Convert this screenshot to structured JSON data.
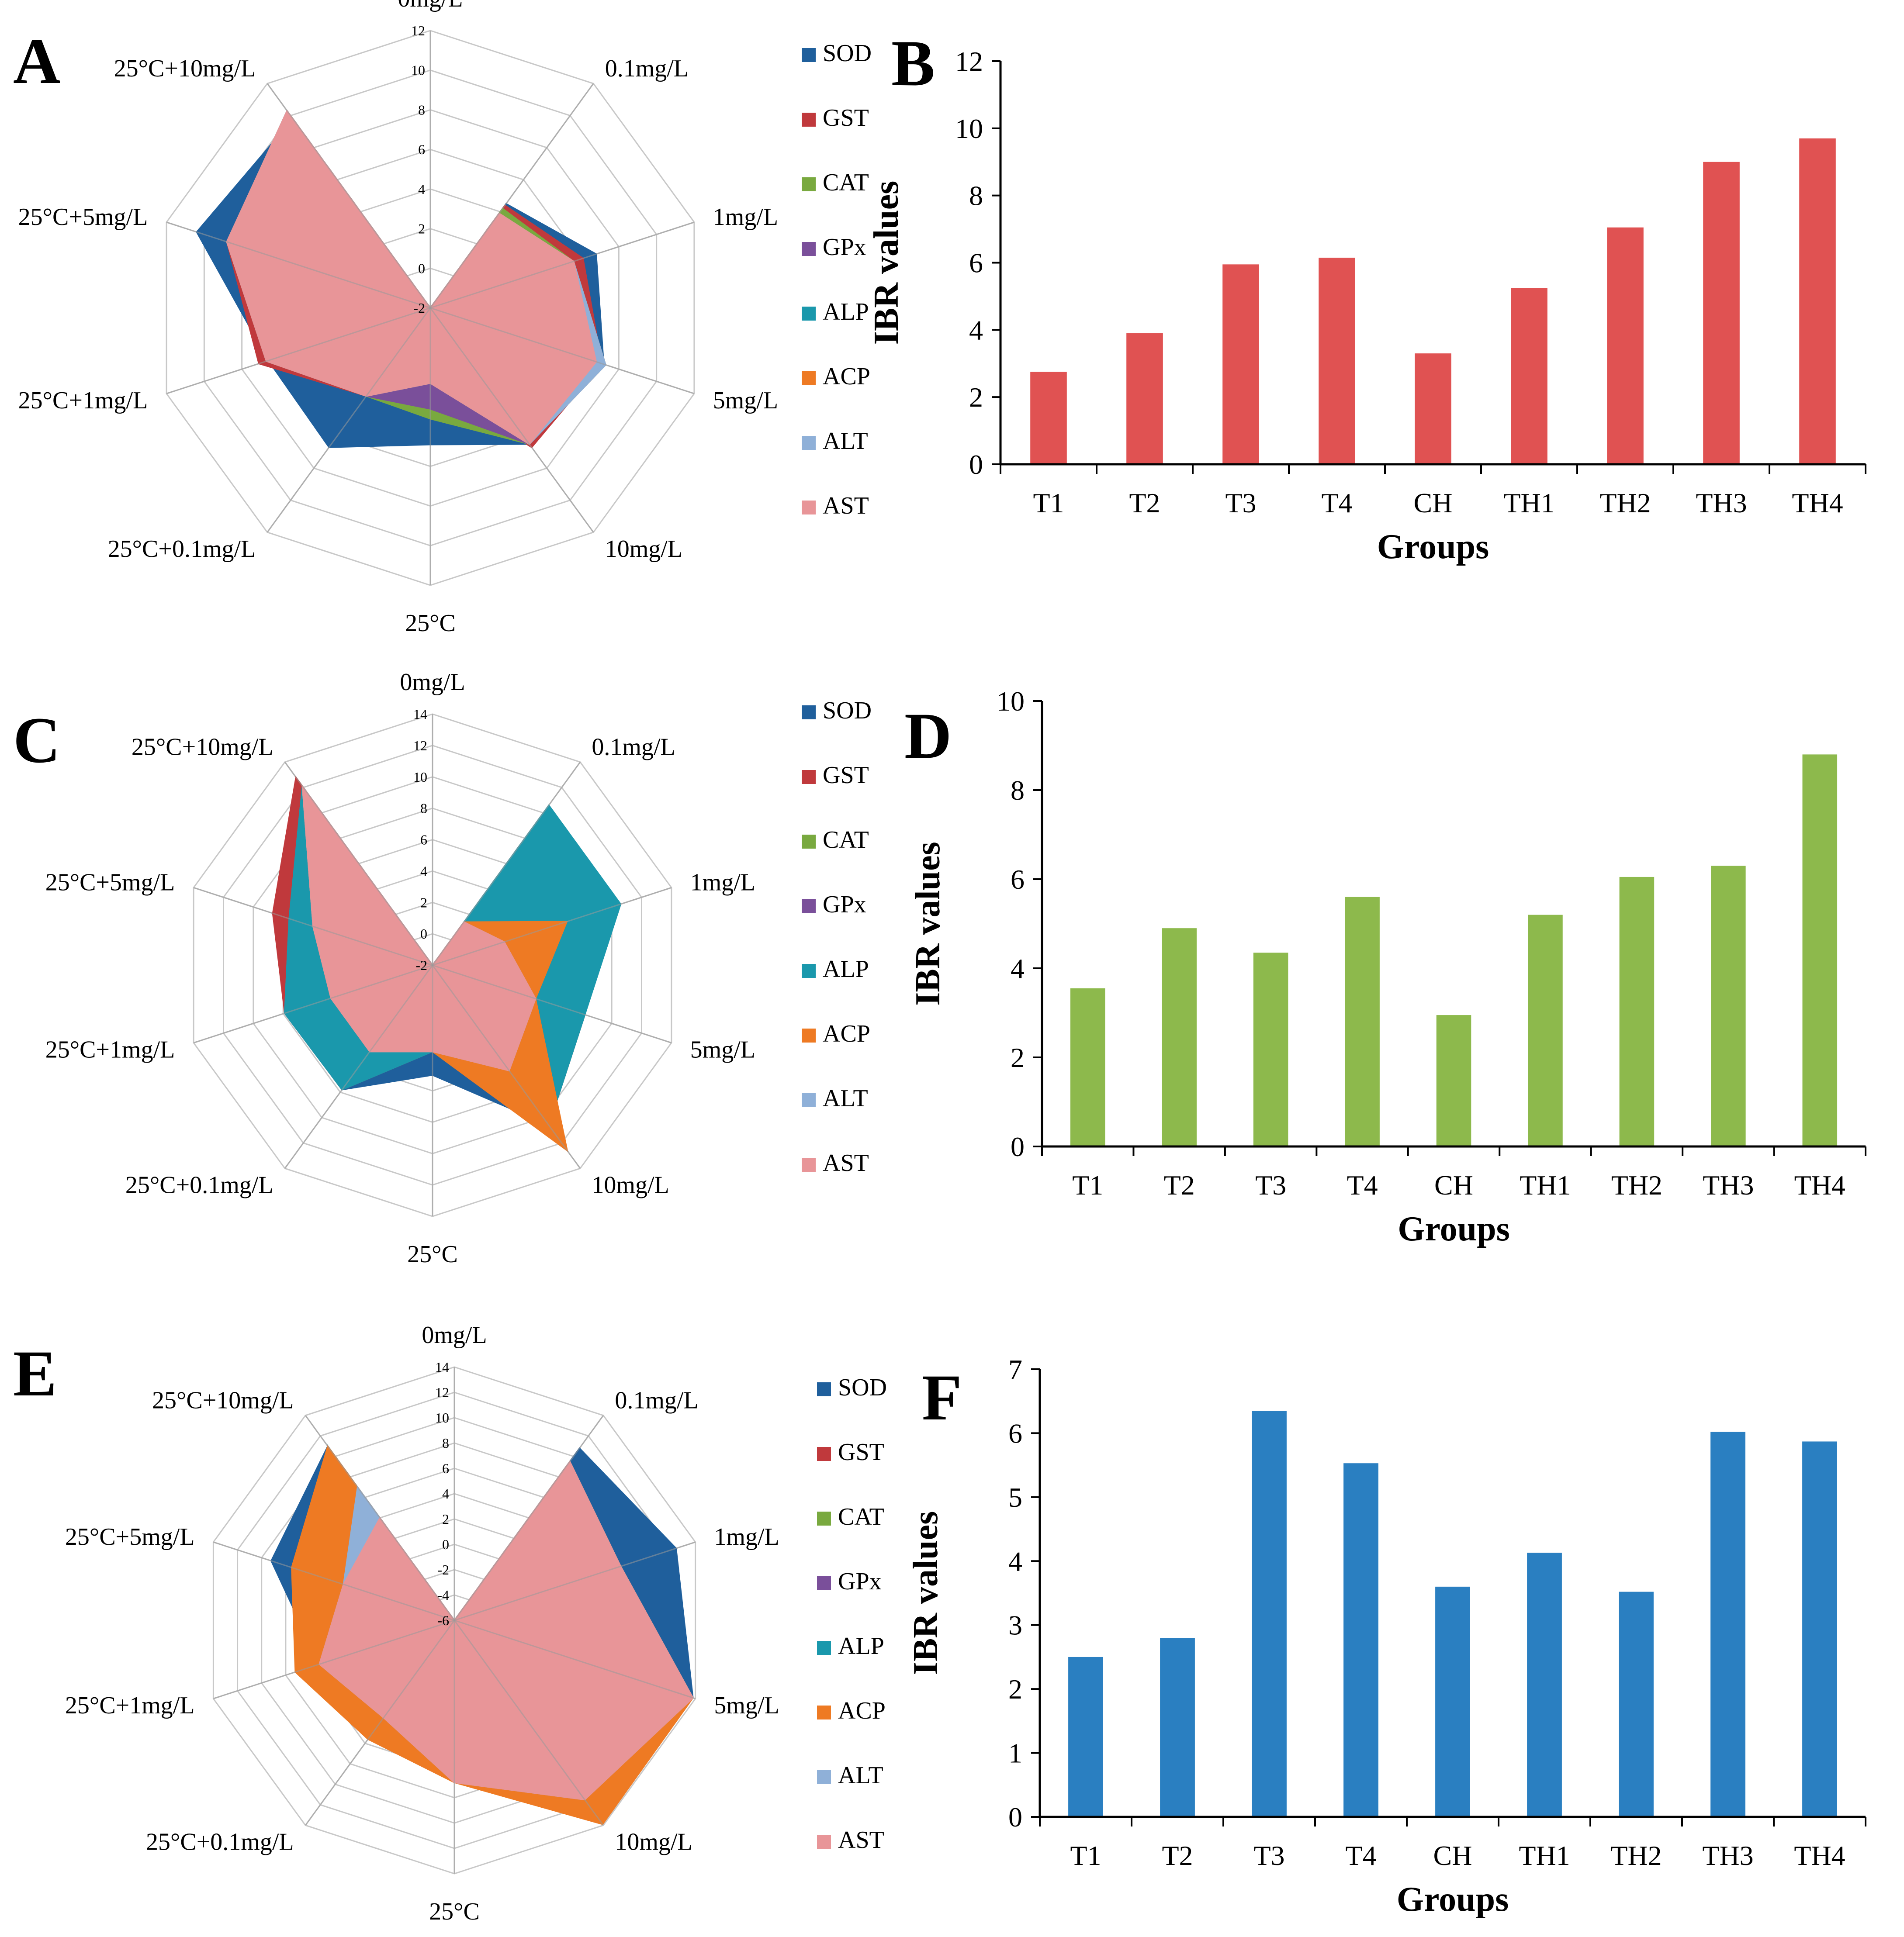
{
  "panels": {
    "A": "A",
    "B": "B",
    "C": "C",
    "D": "D",
    "E": "E",
    "F": "F"
  },
  "legend": {
    "items": [
      {
        "label": "SOD",
        "color": "#1f5f9c"
      },
      {
        "label": "GST",
        "color": "#c0393c"
      },
      {
        "label": "CAT",
        "color": "#79a93f"
      },
      {
        "label": "GPx",
        "color": "#7a4f9a"
      },
      {
        "label": "ALP",
        "color": "#1a98ac"
      },
      {
        "label": "ACP",
        "color": "#ee7a23"
      },
      {
        "label": "ALT",
        "color": "#8fb0d8"
      },
      {
        "label": "AST",
        "color": "#e89598"
      }
    ]
  },
  "chart_data": [
    {
      "type": "radar",
      "panel": "A",
      "categories": [
        "0mg/L",
        "0.1mg/L",
        "1mg/L",
        "5mg/L",
        "10mg/L",
        "25°C",
        "25°C+0.1mg/L",
        "25°C+1mg/L",
        "25°C+5mg/L",
        "25°C+10mg/L"
      ],
      "rlim": [
        -2,
        12
      ],
      "ticks": [
        -2,
        0,
        2,
        4,
        6,
        8,
        10,
        12
      ],
      "series": [
        {
          "name": "SOD",
          "values": [
            -2,
            4.5,
            6.8,
            7.2,
            6.5,
            4.9,
            6.7,
            6.6,
            10.4,
            9.8
          ]
        },
        {
          "name": "GST",
          "values": [
            -2,
            4.4,
            6.1,
            7.1,
            6.7,
            1.8,
            3.5,
            7.1,
            8.8,
            10.1
          ]
        },
        {
          "name": "CAT",
          "values": [
            -2,
            4.2,
            5.6,
            7.1,
            6.5,
            3.6,
            3.5,
            6.7,
            8.8,
            10.3
          ]
        },
        {
          "name": "GPx",
          "values": [
            -2,
            3.9,
            5.6,
            7.3,
            6.5,
            3.1,
            3.5,
            6.7,
            8.8,
            10.3
          ]
        },
        {
          "name": "ALP",
          "values": [
            -2,
            3.9,
            5.6,
            7.3,
            6.5,
            1.8,
            3.5,
            6.7,
            8.8,
            10.3
          ]
        },
        {
          "name": "ACP",
          "values": [
            -2,
            3.9,
            5.6,
            7.3,
            6.5,
            1.8,
            3.5,
            6.7,
            8.8,
            10.3
          ]
        },
        {
          "name": "ALT",
          "values": [
            -2,
            3.9,
            5.6,
            7.3,
            6.5,
            1.8,
            3.5,
            6.7,
            8.8,
            10.3
          ]
        },
        {
          "name": "AST",
          "values": [
            -2,
            3.9,
            5.6,
            6.8,
            6.5,
            1.8,
            3.5,
            6.7,
            8.8,
            10.3
          ]
        }
      ]
    },
    {
      "type": "bar",
      "panel": "B",
      "categories": [
        "T1",
        "T2",
        "T3",
        "T4",
        "CH",
        "TH1",
        "TH2",
        "TH3",
        "TH4"
      ],
      "values": [
        2.75,
        3.9,
        5.95,
        6.15,
        3.3,
        5.25,
        7.05,
        9.0,
        9.7
      ],
      "ylim": [
        0,
        12
      ],
      "yticks": [
        0,
        2,
        4,
        6,
        8,
        10,
        12
      ],
      "color": "#e05252",
      "xlabel": "Groups",
      "ylabel": "IBR values"
    },
    {
      "type": "radar",
      "panel": "C",
      "categories": [
        "0mg/L",
        "0.1mg/L",
        "1mg/L",
        "5mg/L",
        "10mg/L",
        "25°C",
        "25°C+0.1mg/L",
        "25°C+1mg/L",
        "25°C+5mg/L",
        "25°C+10mg/L"
      ],
      "rlim": [
        -2,
        14
      ],
      "ticks": [
        -2,
        0,
        2,
        4,
        6,
        8,
        10,
        12,
        14
      ],
      "series": [
        {
          "name": "SOD",
          "values": [
            -2,
            1.4,
            6.5,
            8.2,
            10.6,
            5.0,
            7.8,
            7.9,
            7.6,
            12.1
          ]
        },
        {
          "name": "GST",
          "values": [
            -2,
            1.4,
            6.5,
            8.2,
            10.6,
            3.5,
            7.8,
            7.9,
            8.7,
            12.8
          ]
        },
        {
          "name": "CAT",
          "values": [
            -2,
            1.4,
            6.5,
            8.2,
            10.6,
            3.5,
            7.8,
            7.9,
            7.6,
            12.1
          ]
        },
        {
          "name": "GPx",
          "values": [
            -2,
            1.4,
            6.5,
            8.2,
            10.6,
            3.5,
            7.8,
            7.9,
            7.6,
            12.1
          ]
        },
        {
          "name": "ALP",
          "values": [
            -2,
            10.6,
            10.6,
            8.2,
            10.6,
            3.5,
            7.8,
            7.9,
            7.6,
            12.1
          ]
        },
        {
          "name": "ACP",
          "values": [
            -2,
            1.4,
            7.0,
            4.9,
            12.6,
            3.5,
            4.8,
            4.8,
            6.0,
            12.1
          ]
        },
        {
          "name": "ALT",
          "values": [
            -2,
            1.4,
            2.8,
            4.9,
            6.3,
            3.5,
            4.8,
            4.8,
            6.0,
            12.1
          ]
        },
        {
          "name": "AST",
          "values": [
            -2,
            1.4,
            2.8,
            4.9,
            6.3,
            3.5,
            4.8,
            4.8,
            6.0,
            12.1
          ]
        }
      ]
    },
    {
      "type": "bar",
      "panel": "D",
      "categories": [
        "T1",
        "T2",
        "T3",
        "T4",
        "CH",
        "TH1",
        "TH2",
        "TH3",
        "TH4"
      ],
      "values": [
        3.55,
        4.9,
        4.35,
        5.6,
        2.95,
        5.2,
        6.05,
        6.3,
        8.8
      ],
      "ylim": [
        0,
        10
      ],
      "yticks": [
        0,
        2,
        4,
        6,
        8,
        10
      ],
      "color": "#8db94c",
      "xlabel": "Groups",
      "ylabel": "IBR values"
    },
    {
      "type": "radar",
      "panel": "E",
      "categories": [
        "0mg/L",
        "0.1mg/L",
        "1mg/L",
        "5mg/L",
        "10mg/L",
        "25°C",
        "25°C+0.1mg/L",
        "25°C+1mg/L",
        "25°C+5mg/L",
        "25°C+10mg/L"
      ],
      "rlim": [
        -6,
        14
      ],
      "ticks": [
        -6,
        -4,
        -2,
        0,
        2,
        4,
        6,
        8,
        10,
        12,
        14
      ],
      "series": [
        {
          "name": "SOD",
          "values": [
            -6,
            10.8,
            12.4,
            13.8,
            11.5,
            6.8,
            4.2,
            5.2,
            9.2,
            11.0
          ]
        },
        {
          "name": "GST",
          "values": [
            -6,
            9.5,
            7.8,
            13.8,
            11.5,
            6.8,
            3.5,
            5.2,
            5.2,
            11.0
          ]
        },
        {
          "name": "CAT",
          "values": [
            -6,
            9.5,
            7.8,
            13.8,
            11.5,
            6.8,
            3.5,
            5.2,
            5.2,
            11.0
          ]
        },
        {
          "name": "GPx",
          "values": [
            -6,
            9.5,
            7.8,
            13.8,
            11.5,
            6.8,
            3.5,
            5.2,
            5.2,
            11.0
          ]
        },
        {
          "name": "ALP",
          "values": [
            -6,
            9.5,
            7.8,
            13.8,
            11.5,
            6.8,
            3.5,
            5.2,
            5.2,
            11.0
          ]
        },
        {
          "name": "ACP",
          "values": [
            -6,
            9.5,
            7.8,
            13.8,
            13.9,
            6.8,
            5.6,
            7.2,
            7.5,
            11.0
          ]
        },
        {
          "name": "ALT",
          "values": [
            -6,
            9.5,
            7.8,
            13.8,
            11.5,
            6.8,
            3.5,
            5.2,
            3.2,
            7.0
          ]
        },
        {
          "name": "AST",
          "values": [
            -6,
            9.5,
            7.8,
            13.8,
            11.5,
            6.8,
            3.5,
            5.2,
            3.2,
            4.0
          ]
        }
      ]
    },
    {
      "type": "bar",
      "panel": "F",
      "categories": [
        "T1",
        "T2",
        "T3",
        "T4",
        "CH",
        "TH1",
        "TH2",
        "TH3",
        "TH4"
      ],
      "values": [
        2.5,
        2.8,
        6.35,
        5.53,
        3.6,
        4.13,
        3.52,
        6.02,
        5.87
      ],
      "ylim": [
        0,
        7
      ],
      "yticks": [
        0,
        1,
        2,
        3,
        4,
        5,
        6,
        7
      ],
      "color": "#2a7fc1",
      "xlabel": "Groups",
      "ylabel": "IBR values"
    }
  ]
}
